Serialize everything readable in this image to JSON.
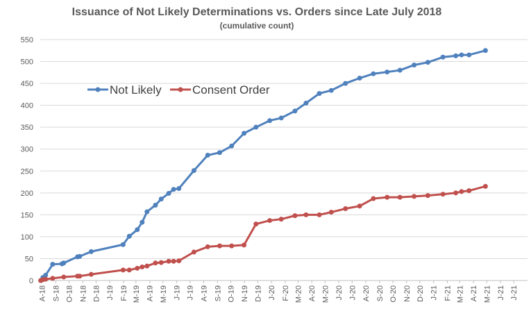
{
  "chart_data": {
    "type": "line",
    "title": "Issuance of Not Likely Determinations vs. Orders since Late July 2018",
    "subtitle": "(cumulative count)",
    "xlabel": "",
    "ylabel": "",
    "ylim": [
      0,
      550
    ],
    "yticks": [
      "0",
      "50",
      "100",
      "150",
      "200",
      "250",
      "300",
      "350",
      "400",
      "450",
      "500",
      "550"
    ],
    "xlim": [
      "2018-07-28",
      "2021-08-01"
    ],
    "xticks": [
      {
        "date": "2018-08-01",
        "label": "A-18"
      },
      {
        "date": "2018-09-01",
        "label": "S-18"
      },
      {
        "date": "2018-10-01",
        "label": "O-18"
      },
      {
        "date": "2018-11-01",
        "label": "N-18"
      },
      {
        "date": "2018-12-01",
        "label": "D-18"
      },
      {
        "date": "2019-01-01",
        "label": "J-19"
      },
      {
        "date": "2019-02-01",
        "label": "F-19"
      },
      {
        "date": "2019-03-01",
        "label": "M-19"
      },
      {
        "date": "2019-04-01",
        "label": "A-19"
      },
      {
        "date": "2019-05-01",
        "label": "M-19"
      },
      {
        "date": "2019-06-01",
        "label": "J-19"
      },
      {
        "date": "2019-07-01",
        "label": "J-19"
      },
      {
        "date": "2019-08-01",
        "label": "A-19"
      },
      {
        "date": "2019-09-01",
        "label": "S-19"
      },
      {
        "date": "2019-10-01",
        "label": "O-19"
      },
      {
        "date": "2019-11-01",
        "label": "N-19"
      },
      {
        "date": "2019-12-01",
        "label": "D-19"
      },
      {
        "date": "2020-01-01",
        "label": "J-20"
      },
      {
        "date": "2020-02-01",
        "label": "F-20"
      },
      {
        "date": "2020-03-01",
        "label": "M-20"
      },
      {
        "date": "2020-04-01",
        "label": "A-20"
      },
      {
        "date": "2020-05-01",
        "label": "M-20"
      },
      {
        "date": "2020-06-01",
        "label": "J-20"
      },
      {
        "date": "2020-07-01",
        "label": "J-20"
      },
      {
        "date": "2020-08-01",
        "label": "A-20"
      },
      {
        "date": "2020-09-01",
        "label": "S-20"
      },
      {
        "date": "2020-10-01",
        "label": "O-20"
      },
      {
        "date": "2020-11-01",
        "label": "N-20"
      },
      {
        "date": "2020-12-01",
        "label": "D-20"
      },
      {
        "date": "2021-01-01",
        "label": "J-21"
      },
      {
        "date": "2021-02-01",
        "label": "F-21"
      },
      {
        "date": "2021-03-01",
        "label": "M-21"
      },
      {
        "date": "2021-04-01",
        "label": "A-21"
      },
      {
        "date": "2021-05-01",
        "label": "M-21"
      },
      {
        "date": "2021-06-01",
        "label": "J-21"
      },
      {
        "date": "2021-07-01",
        "label": "J-21"
      }
    ],
    "grid": true,
    "legend_position": "top-left",
    "series": [
      {
        "name": "Not Likely",
        "color": "#4f81bd",
        "points": [
          [
            "2018-07-29",
            0
          ],
          [
            "2018-08-03",
            7
          ],
          [
            "2018-08-09",
            12
          ],
          [
            "2018-08-25",
            37
          ],
          [
            "2018-09-15",
            38
          ],
          [
            "2018-09-19",
            40
          ],
          [
            "2018-10-20",
            54
          ],
          [
            "2018-10-25",
            55
          ],
          [
            "2018-11-20",
            66
          ],
          [
            "2019-01-31",
            82
          ],
          [
            "2019-02-14",
            101
          ],
          [
            "2019-03-04",
            116
          ],
          [
            "2019-03-15",
            133
          ],
          [
            "2019-03-26",
            157
          ],
          [
            "2019-04-14",
            172
          ],
          [
            "2019-04-27",
            186
          ],
          [
            "2019-05-14",
            199
          ],
          [
            "2019-05-25",
            208
          ],
          [
            "2019-06-06",
            210
          ],
          [
            "2019-07-10",
            251
          ],
          [
            "2019-08-10",
            286
          ],
          [
            "2019-09-06",
            292
          ],
          [
            "2019-10-03",
            307
          ],
          [
            "2019-10-31",
            336
          ],
          [
            "2019-11-27",
            350
          ],
          [
            "2019-12-28",
            365
          ],
          [
            "2020-01-23",
            371
          ],
          [
            "2020-02-23",
            387
          ],
          [
            "2020-03-19",
            405
          ],
          [
            "2020-04-18",
            427
          ],
          [
            "2020-05-15",
            434
          ],
          [
            "2020-06-16",
            450
          ],
          [
            "2020-07-18",
            462
          ],
          [
            "2020-08-18",
            472
          ],
          [
            "2020-09-18",
            476
          ],
          [
            "2020-10-17",
            480
          ],
          [
            "2020-11-18",
            492
          ],
          [
            "2020-12-19",
            498
          ],
          [
            "2021-01-22",
            510
          ],
          [
            "2021-02-20",
            513
          ],
          [
            "2021-03-05",
            515
          ],
          [
            "2021-03-22",
            515
          ],
          [
            "2021-04-28",
            525
          ]
        ]
      },
      {
        "name": "Consent Order",
        "color": "#c0504d",
        "points": [
          [
            "2018-07-29",
            0
          ],
          [
            "2018-08-03",
            2
          ],
          [
            "2018-08-09",
            3
          ],
          [
            "2018-08-25",
            5
          ],
          [
            "2018-09-19",
            8
          ],
          [
            "2018-10-20",
            10
          ],
          [
            "2018-10-25",
            10
          ],
          [
            "2018-11-20",
            14
          ],
          [
            "2019-01-31",
            24
          ],
          [
            "2019-02-14",
            24
          ],
          [
            "2019-03-04",
            28
          ],
          [
            "2019-03-15",
            31
          ],
          [
            "2019-03-26",
            33
          ],
          [
            "2019-04-14",
            40
          ],
          [
            "2019-04-27",
            41
          ],
          [
            "2019-05-14",
            44
          ],
          [
            "2019-05-25",
            44
          ],
          [
            "2019-06-06",
            45
          ],
          [
            "2019-07-10",
            65
          ],
          [
            "2019-08-10",
            77
          ],
          [
            "2019-09-06",
            79
          ],
          [
            "2019-10-03",
            79
          ],
          [
            "2019-10-31",
            81
          ],
          [
            "2019-11-27",
            129
          ],
          [
            "2019-12-28",
            137
          ],
          [
            "2020-01-23",
            140
          ],
          [
            "2020-02-23",
            148
          ],
          [
            "2020-03-19",
            150
          ],
          [
            "2020-04-18",
            150
          ],
          [
            "2020-05-15",
            156
          ],
          [
            "2020-06-16",
            164
          ],
          [
            "2020-07-18",
            170
          ],
          [
            "2020-08-18",
            187
          ],
          [
            "2020-09-18",
            190
          ],
          [
            "2020-10-17",
            190
          ],
          [
            "2020-11-18",
            192
          ],
          [
            "2020-12-19",
            194
          ],
          [
            "2021-01-22",
            197
          ],
          [
            "2021-02-20",
            200
          ],
          [
            "2021-03-05",
            203
          ],
          [
            "2021-03-22",
            205
          ],
          [
            "2021-04-28",
            215
          ]
        ]
      }
    ]
  }
}
